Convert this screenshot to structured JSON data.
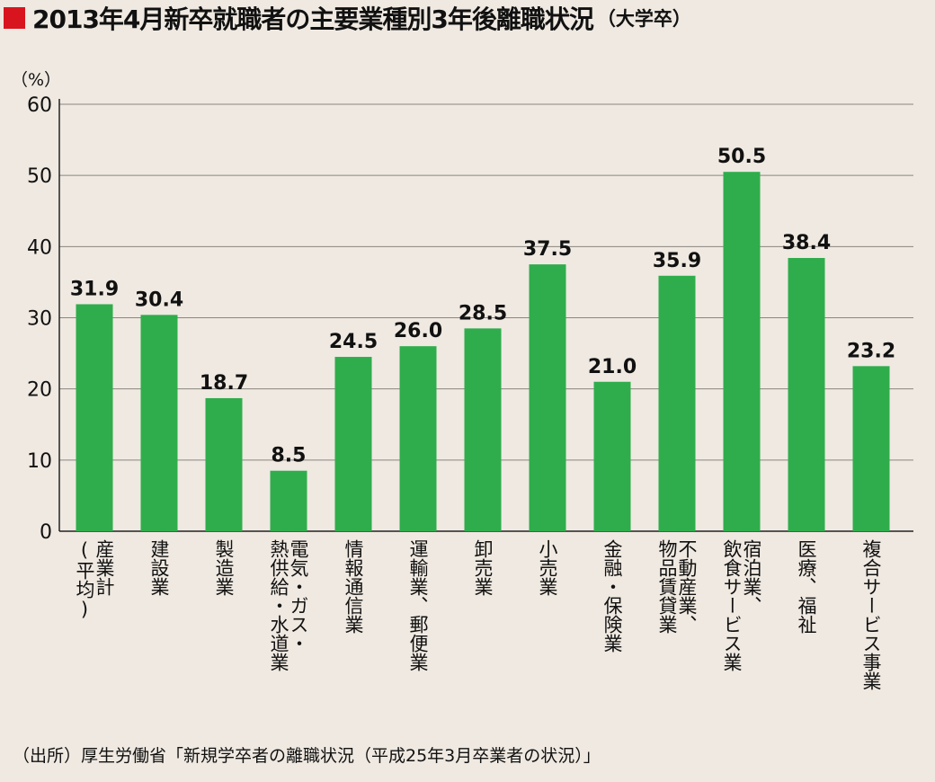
{
  "title": {
    "main": "2013年4月新卒就職者の主要業種別3年後離職状況",
    "sub": "（大学卒）",
    "marker_color": "#d8151f"
  },
  "source": "（出所）厚生労働省「新規学卒者の離職状況（平成25年3月卒業者の状況）」",
  "chart_data": {
    "type": "bar",
    "title": "2013年4月新卒就職者の主要業種別3年後離職状況（大学卒）",
    "ylabel": "（%）",
    "xlabel": "",
    "ylim": [
      0,
      60
    ],
    "yticks": [
      0,
      10,
      20,
      30,
      40,
      50,
      60
    ],
    "grid": true,
    "bar_color": "#2fad4c",
    "categories": [
      "産業計（平均）",
      "建設業",
      "製造業",
      "電気・ガス・熱供給・水道業",
      "情報通信業",
      "運輸業、郵便業",
      "卸売業",
      "小売業",
      "金融・保険業",
      "不動産業、物品賃貸業",
      "宿泊業、飲食サービス業",
      "医療、福祉",
      "複合サービス事業"
    ],
    "category_lines": [
      [
        "産業計",
        "(平均)"
      ],
      [
        "建設業"
      ],
      [
        "製造業"
      ],
      [
        "電気・ガス・",
        "熱供給・水道業"
      ],
      [
        "情報通信業"
      ],
      [
        "運輸業、郵便業"
      ],
      [
        "卸売業"
      ],
      [
        "小売業"
      ],
      [
        "金融・保険業"
      ],
      [
        "不動産業、",
        "物品賃貸業"
      ],
      [
        "宿泊業、",
        "飲食サービス業"
      ],
      [
        "医療、福祉"
      ],
      [
        "複合サービス事業"
      ]
    ],
    "values": [
      31.9,
      30.4,
      18.7,
      8.5,
      24.5,
      26.0,
      28.5,
      37.5,
      21.0,
      35.9,
      50.5,
      38.4,
      23.2
    ],
    "value_labels": [
      "31.9",
      "30.4",
      "18.7",
      "8.5",
      "24.5",
      "26.0",
      "28.5",
      "37.5",
      "21.0",
      "35.9",
      "50.5",
      "38.4",
      "23.2"
    ]
  }
}
